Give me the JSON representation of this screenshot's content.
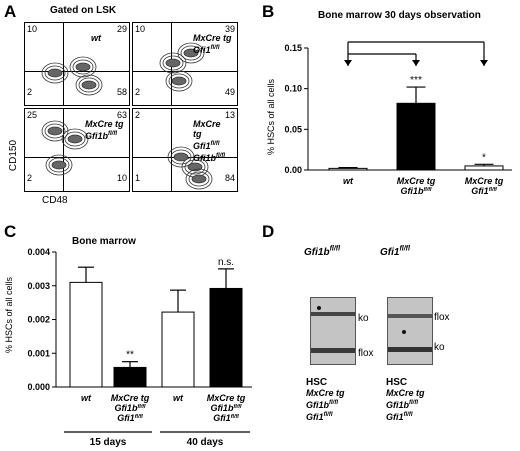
{
  "panelA": {
    "label": "A",
    "gate_title": "Gated on LSK",
    "ylabel": "CD150",
    "xlabel": "CD48",
    "plots": [
      {
        "genotype": [
          "wt"
        ],
        "q": {
          "tl": "10",
          "tr": "29",
          "bl": "2",
          "br": "58"
        }
      },
      {
        "genotype": [
          "MxCre tg",
          "Gfi1fl/fl"
        ],
        "q": {
          "tl": "10",
          "tr": "39",
          "bl": "2",
          "br": "49"
        }
      },
      {
        "genotype": [
          "MxCre tg",
          "Gfi1bfl/fl"
        ],
        "q": {
          "tl": "25",
          "tr": "63",
          "bl": "2",
          "br": "10"
        }
      },
      {
        "genotype": [
          "MxCre",
          "tg",
          "Gfi1fl/fl",
          "Gfi1bfl/fl"
        ],
        "q": {
          "tl": "2",
          "tr": "13",
          "bl": "1",
          "br": "84"
        }
      }
    ]
  },
  "panelB": {
    "label": "B",
    "chart_data": {
      "type": "bar",
      "title": "Bone marrow 30 days observation",
      "ylabel": "% HSCs of all cells",
      "ylim": [
        0,
        0.15
      ],
      "yticks": [
        "0.00",
        "0.05",
        "0.10",
        "0.15"
      ],
      "categories": [
        [
          "wt"
        ],
        [
          "MxCre tg",
          "Gfi1bfl/fl"
        ],
        [
          "MxCre tg",
          "Gfi1fl/fl"
        ]
      ],
      "values": [
        0.002,
        0.082,
        0.005
      ],
      "errors": [
        0.001,
        0.02,
        0.002
      ],
      "significance": [
        "",
        "***",
        "*"
      ],
      "bar_colors": [
        "#ffffff",
        "#000000",
        "#ffffff"
      ]
    }
  },
  "panelC": {
    "label": "C",
    "chart_data": {
      "type": "bar",
      "title": "Bone marrow",
      "ylabel": "% HSCs of all cells",
      "ylim": [
        0,
        0.004
      ],
      "yticks": [
        "0.000",
        "0.001",
        "0.002",
        "0.003",
        "0.004"
      ],
      "categories": [
        [
          "wt"
        ],
        [
          "MxCre tg",
          "Gfi1bfl/fl",
          "Gfi1fl/fl"
        ],
        [
          "wt"
        ],
        [
          "MxCre tg",
          "Gfi1bfl/fl",
          "Gfi1fl/fl"
        ]
      ],
      "values": [
        0.0031,
        0.00058,
        0.00222,
        0.00292
      ],
      "errors": [
        0.00045,
        0.00017,
        0.00065,
        0.00058
      ],
      "significance": [
        "",
        "**",
        "",
        "n.s."
      ],
      "bar_colors": [
        "#ffffff",
        "#000000",
        "#ffffff",
        "#000000"
      ],
      "groups": [
        "15 days",
        "40 days"
      ]
    }
  },
  "panelD": {
    "label": "D",
    "header1": "Gfi1bfl/fl",
    "header2": "Gfi1fl/fl",
    "lane1": {
      "top": "ko",
      "bottom": "flox",
      "caption": [
        "HSC",
        "MxCre tg",
        "Gfi1bfl/fl",
        "Gfi1fl/fl"
      ]
    },
    "lane2": {
      "top": "flox",
      "bottom": "ko",
      "caption": [
        "HSC",
        "MxCre tg",
        "Gfi1bfl/fl",
        "Gfi1fl/fl"
      ]
    }
  }
}
